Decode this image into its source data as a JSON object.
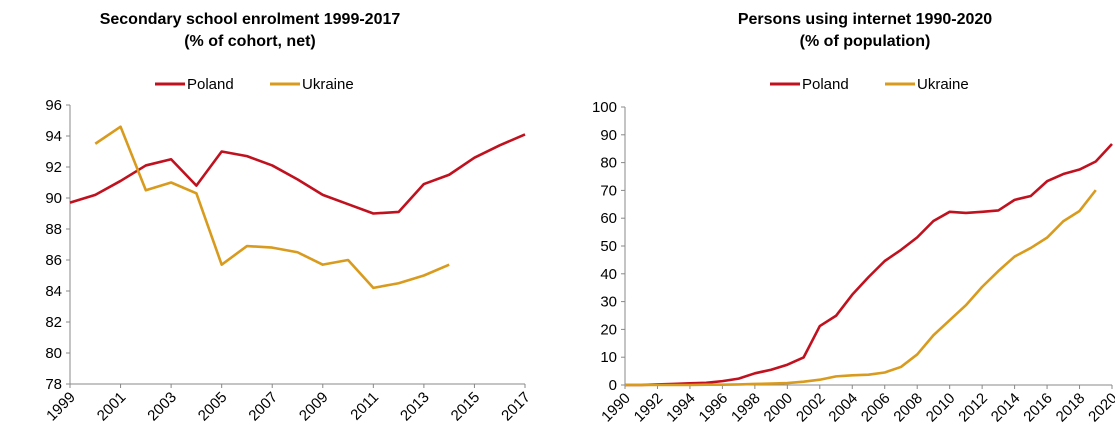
{
  "chart_data": [
    {
      "type": "line",
      "title": "Secondary school enrolment 1999-2017",
      "subtitle": "(% of cohort, net)",
      "x": [
        1999,
        2000,
        2001,
        2002,
        2003,
        2004,
        2005,
        2006,
        2007,
        2008,
        2009,
        2010,
        2011,
        2012,
        2013,
        2014,
        2015,
        2016,
        2017
      ],
      "xlim": [
        1999,
        2017
      ],
      "xticks": [
        1999,
        2001,
        2003,
        2005,
        2007,
        2009,
        2011,
        2013,
        2015,
        2017
      ],
      "ylim": [
        78,
        96
      ],
      "yticks": [
        78,
        80,
        82,
        84,
        86,
        88,
        90,
        92,
        94,
        96
      ],
      "legend": "top",
      "series": [
        {
          "name": "Poland",
          "color": "#c0111f",
          "values": [
            89.7,
            90.2,
            91.1,
            92.1,
            92.5,
            90.8,
            93.0,
            92.7,
            92.1,
            91.2,
            90.2,
            89.6,
            89.0,
            89.1,
            90.9,
            91.5,
            92.6,
            93.4,
            94.1
          ]
        },
        {
          "name": "Ukraine",
          "color": "#d89b1e",
          "values": [
            null,
            93.5,
            94.6,
            90.5,
            91.0,
            90.3,
            85.7,
            86.9,
            86.8,
            86.5,
            85.7,
            86.0,
            84.2,
            84.5,
            85.0,
            85.7,
            null,
            null,
            null
          ]
        }
      ]
    },
    {
      "type": "line",
      "title": "Persons using internet 1990-2020",
      "subtitle": "(% of population)",
      "x": [
        1990,
        1991,
        1992,
        1993,
        1994,
        1995,
        1996,
        1997,
        1998,
        1999,
        2000,
        2001,
        2002,
        2003,
        2004,
        2005,
        2006,
        2007,
        2008,
        2009,
        2010,
        2011,
        2012,
        2013,
        2014,
        2015,
        2016,
        2017,
        2018,
        2019,
        2020
      ],
      "xlim": [
        1990,
        2020
      ],
      "xticks": [
        1990,
        1992,
        1994,
        1996,
        1998,
        2000,
        2002,
        2004,
        2006,
        2008,
        2010,
        2012,
        2014,
        2016,
        2018,
        2020
      ],
      "ylim": [
        0,
        100
      ],
      "yticks": [
        0,
        10,
        20,
        30,
        40,
        50,
        60,
        70,
        80,
        90,
        100
      ],
      "legend": "top",
      "series": [
        {
          "name": "Poland",
          "color": "#c0111f",
          "values": [
            0,
            0,
            0.2,
            0.4,
            0.6,
            0.8,
            1.4,
            2.3,
            4.2,
            5.5,
            7.3,
            9.9,
            21.2,
            24.9,
            32.5,
            38.8,
            44.6,
            48.6,
            53.1,
            59.0,
            62.3,
            61.9,
            62.3,
            62.8,
            66.6,
            68.0,
            73.3,
            75.9,
            77.5,
            80.4,
            86.7
          ]
        },
        {
          "name": "Ukraine",
          "color": "#d89b1e",
          "values": [
            0,
            0,
            0,
            0,
            0,
            0.1,
            0.1,
            0.2,
            0.4,
            0.5,
            0.7,
            1.2,
            1.9,
            3.1,
            3.5,
            3.7,
            4.5,
            6.5,
            11.0,
            17.9,
            23.3,
            28.7,
            35.3,
            41.0,
            46.2,
            49.3,
            53.0,
            58.9,
            62.6,
            70.1,
            null
          ]
        }
      ]
    }
  ]
}
